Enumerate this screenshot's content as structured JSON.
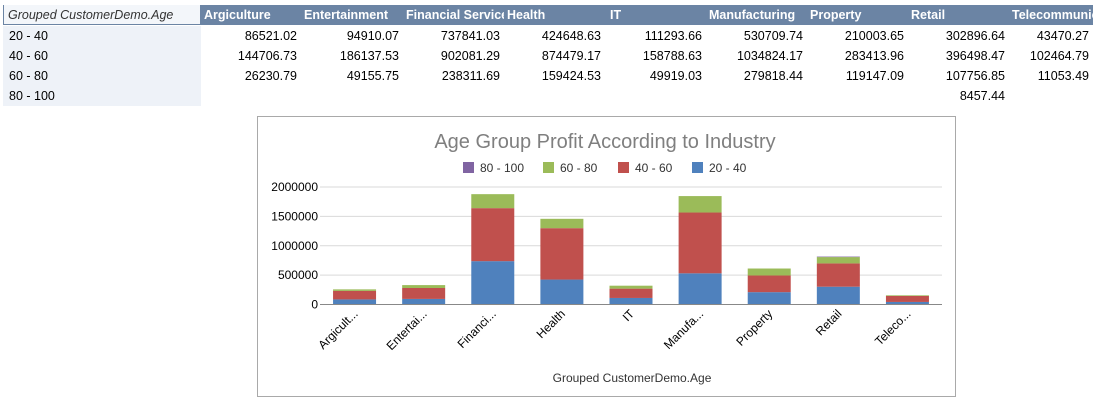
{
  "sheet": {
    "corner_label": "Grouped CustomerDemo.Age",
    "column_headers": [
      "Argiculture",
      "Entertainment",
      "Financial Services",
      "Health",
      "IT",
      "Manufacturing",
      "Property",
      "Retail",
      "Telecommunications"
    ],
    "rows": [
      {
        "label": "20 - 40",
        "values": [
          "86521.02",
          "94910.07",
          "737841.03",
          "424648.63",
          "111293.66",
          "530709.74",
          "210003.65",
          "302896.64",
          "43470.27"
        ]
      },
      {
        "label": "40 - 60",
        "values": [
          "144706.73",
          "186137.53",
          "902081.29",
          "874479.17",
          "158788.63",
          "1034824.17",
          "283413.96",
          "396498.47",
          "102464.79"
        ]
      },
      {
        "label": "60 - 80",
        "values": [
          "26230.79",
          "49155.75",
          "238311.69",
          "159424.53",
          "49919.03",
          "279818.44",
          "119147.09",
          "107756.85",
          "11053.49"
        ]
      },
      {
        "label": "80 - 100",
        "values": [
          "",
          "",
          "",
          "",
          "",
          "",
          "",
          "8457.44",
          ""
        ]
      }
    ]
  },
  "chart_data": {
    "type": "bar",
    "stacked": true,
    "title": "Age Group Profit According to Industry",
    "xlabel": "Grouped CustomerDemo.Age",
    "ylabel": "",
    "ylim": [
      0,
      2000000
    ],
    "yticks": [
      "2000000",
      "1500000",
      "1000000",
      "500000",
      "0"
    ],
    "grid": true,
    "legend_position": "top",
    "categories": [
      "Argicult...",
      "Entertai...",
      "Financi...",
      "Health",
      "IT",
      "Manufa...",
      "Property",
      "Retail",
      "Teleco..."
    ],
    "legend": [
      {
        "name": "80 - 100",
        "color": "#8064a2"
      },
      {
        "name": "60 - 80",
        "color": "#9bbb59"
      },
      {
        "name": "40 - 60",
        "color": "#c0504d"
      },
      {
        "name": "20 - 40",
        "color": "#4f81bd"
      }
    ],
    "series": [
      {
        "name": "20 - 40",
        "color": "#4f81bd",
        "values": [
          86521.02,
          94910.07,
          737841.03,
          424648.63,
          111293.66,
          530709.74,
          210003.65,
          302896.64,
          43470.27
        ]
      },
      {
        "name": "40 - 60",
        "color": "#c0504d",
        "values": [
          144706.73,
          186137.53,
          902081.29,
          874479.17,
          158788.63,
          1034824.17,
          283413.96,
          396498.47,
          102464.79
        ]
      },
      {
        "name": "60 - 80",
        "color": "#9bbb59",
        "values": [
          26230.79,
          49155.75,
          238311.69,
          159424.53,
          49919.03,
          279818.44,
          119147.09,
          107756.85,
          11053.49
        ]
      },
      {
        "name": "80 - 100",
        "color": "#8064a2",
        "values": [
          0,
          0,
          0,
          0,
          0,
          0,
          0,
          8457.44,
          0
        ]
      }
    ]
  }
}
